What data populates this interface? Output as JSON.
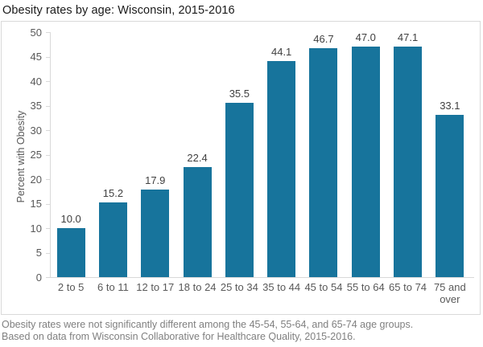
{
  "header": {
    "title": "Obesity rates by age: Wisconsin, 2015-2016"
  },
  "chart_data": {
    "type": "bar",
    "title": "Obesity rates by age: Wisconsin, 2015-2016",
    "categories": [
      "2 to 5",
      "6 to 11",
      "12 to 17",
      "18 to 24",
      "25 to 34",
      "35 to 44",
      "45 to 54",
      "55 to 64",
      "65 to 74",
      "75 and over"
    ],
    "values": [
      10.0,
      15.2,
      17.9,
      22.4,
      35.5,
      44.1,
      46.7,
      47.0,
      47.1,
      33.1
    ],
    "value_labels": [
      "10.0",
      "15.2",
      "17.9",
      "22.4",
      "35.5",
      "44.1",
      "46.7",
      "47.0",
      "47.1",
      "33.1"
    ],
    "xlabel": "",
    "ylabel": "Percent with Obesity",
    "ylim": [
      0,
      50
    ],
    "ytick_step": 5,
    "ytick_labels": [
      "0",
      "5",
      "10",
      "15",
      "20",
      "25",
      "30",
      "35",
      "40",
      "45",
      "50"
    ],
    "grid": false,
    "legend": "none",
    "data_labels": true
  },
  "footer": {
    "line1": "Obesity rates were not significantly different among the 45-54, 55-64, and 65-74 age groups.",
    "line2": "Based on data from Wisconsin Collaborative for Healthcare Quality, 2015-2016."
  },
  "colors": {
    "bar": "#17749c",
    "axis": "#d9d9d9",
    "tick_text": "#595959",
    "value_text": "#404040",
    "footer_text": "#7f7f7f",
    "title_text": "#1a1a1a"
  }
}
